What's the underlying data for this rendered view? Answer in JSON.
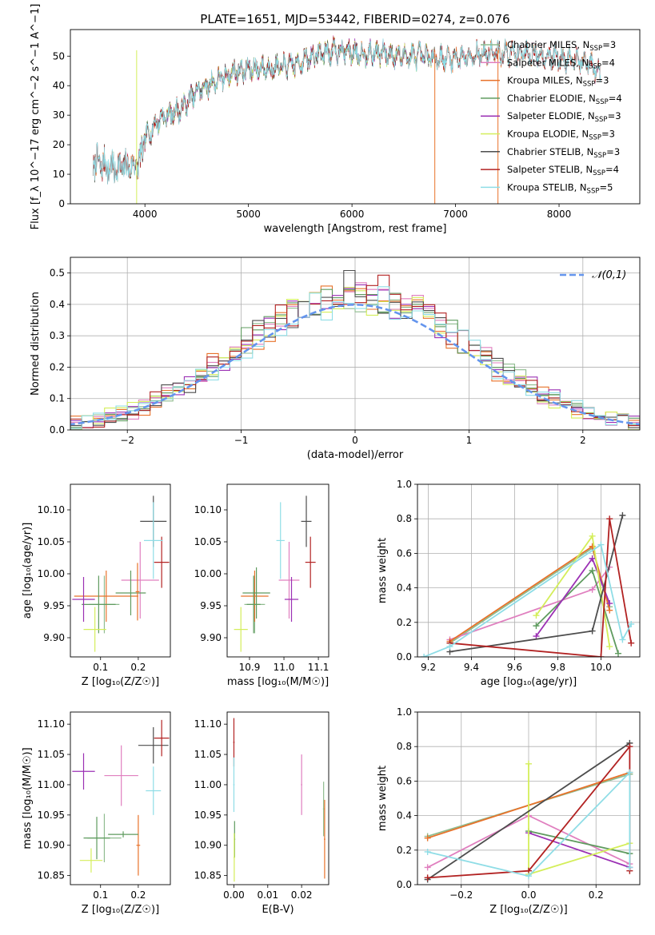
{
  "figure": {
    "title": "PLATE=1651, MJD=53442, FIBERID=0274, z=0.076"
  },
  "colors": {
    "Chabrier MILES": "#8fbc8f",
    "Salpeter MILES": "#e07fbf",
    "Kroupa MILES": "#e8722a",
    "Chabrier ELODIE": "#5f9b5f",
    "Salpeter ELODIE": "#9b30b4",
    "Kroupa ELODIE": "#d4ee5a",
    "Chabrier STELIB": "#4d4d4d",
    "Salpeter STELIB": "#b22222",
    "Kroupa STELIB": "#8fdde6",
    "normal_curve": "#6495ed",
    "grid": "#b0b0b0"
  },
  "chart_data": [
    {
      "id": "spectrum",
      "type": "line",
      "xlabel": "wavelength [Angstrom, rest frame]",
      "ylabel": "Flux [f_λ 10^−17 erg cm^−2 s^−1 A^−1]",
      "xlim": [
        3280,
        8780
      ],
      "ylim": [
        0,
        59
      ],
      "xticks": [
        4000,
        5000,
        6000,
        7000,
        8000
      ],
      "yticks": [
        0,
        10,
        20,
        30,
        40,
        50
      ],
      "grid": false,
      "legend_position": "top-right",
      "legend": [
        {
          "model": "Chabrier MILES",
          "nssp": "3"
        },
        {
          "model": "Salpeter MILES",
          "nssp": "4"
        },
        {
          "model": "Kroupa MILES",
          "nssp": "3"
        },
        {
          "model": "Chabrier ELODIE",
          "nssp": "4"
        },
        {
          "model": "Salpeter ELODIE",
          "nssp": "3"
        },
        {
          "model": "Kroupa ELODIE",
          "nssp": "3"
        },
        {
          "model": "Chabrier STELIB",
          "nssp": "3"
        },
        {
          "model": "Salpeter STELIB",
          "nssp": "4"
        },
        {
          "model": "Kroupa STELIB",
          "nssp": "5"
        }
      ],
      "continuum_knots": [
        [
          3500,
          14
        ],
        [
          3700,
          12
        ],
        [
          3900,
          13
        ],
        [
          3950,
          14
        ],
        [
          4000,
          22
        ],
        [
          4150,
          29
        ],
        [
          4350,
          32
        ],
        [
          4500,
          38
        ],
        [
          4700,
          42
        ],
        [
          4900,
          45
        ],
        [
          5100,
          46
        ],
        [
          5300,
          46
        ],
        [
          5500,
          48
        ],
        [
          5700,
          51
        ],
        [
          5900,
          52
        ],
        [
          6100,
          51
        ],
        [
          6300,
          51
        ],
        [
          6500,
          50
        ],
        [
          6700,
          50
        ],
        [
          6900,
          49
        ],
        [
          7100,
          50
        ],
        [
          7300,
          51
        ],
        [
          7500,
          51
        ],
        [
          7700,
          51
        ],
        [
          7900,
          50
        ],
        [
          8100,
          49
        ],
        [
          8300,
          47
        ],
        [
          8400,
          44
        ]
      ],
      "model_ranges": [
        [
          3500,
          8400
        ],
        [
          3500,
          8400
        ],
        [
          3500,
          8400
        ],
        [
          3900,
          6800
        ],
        [
          3900,
          6800
        ],
        [
          3900,
          6800
        ],
        [
          3500,
          8400
        ],
        [
          3500,
          8400
        ],
        [
          3500,
          8400
        ]
      ]
    },
    {
      "id": "residuals",
      "type": "histogram",
      "xlabel": "(data-model)/error",
      "ylabel": "Normed distribution",
      "xlim": [
        -2.5,
        2.5
      ],
      "ylim": [
        0,
        0.55
      ],
      "xticks": [
        -2,
        -1,
        0,
        1,
        2
      ],
      "yticks": [
        0.0,
        0.1,
        0.2,
        0.3,
        0.4,
        0.5
      ],
      "bin_width": 0.1,
      "grid": true,
      "legend_position": "top-right",
      "legend_label": "𝒩(0,1)",
      "reference_curve": "normal(0,1)"
    },
    {
      "id": "age-vs-z",
      "type": "scatter",
      "xlabel": "Z [log₁₀(Z/Z☉)]",
      "ylabel": "age  [log₁₀(age/yr)]",
      "xlim": [
        0.02,
        0.285
      ],
      "ylim": [
        9.87,
        10.14
      ],
      "xticks": [
        0.1,
        0.2
      ],
      "yticks": [
        9.9,
        9.95,
        10.0,
        10.05,
        10.1
      ],
      "grid": false,
      "points": [
        {
          "model": "Chabrier MILES",
          "x": 0.11,
          "y": 9.952,
          "xerr": 0.04,
          "yerr": 0.045
        },
        {
          "model": "Salpeter MILES",
          "x": 0.205,
          "y": 9.99,
          "xerr": 0.05,
          "yerr": 0.06
        },
        {
          "model": "Kroupa MILES",
          "x": 0.115,
          "y": 9.965,
          "xerr": 0.085,
          "yerr": 0.04
        },
        {
          "model": "Chabrier ELODIE",
          "x": 0.095,
          "y": 9.952,
          "xerr": 0.045,
          "yerr": 0.045
        },
        {
          "model": "Salpeter ELODIE",
          "x": 0.055,
          "y": 9.96,
          "xerr": 0.03,
          "yerr": 0.035
        },
        {
          "model": "Kroupa ELODIE",
          "x": 0.085,
          "y": 9.913,
          "xerr": 0.03,
          "yerr": 0.035
        },
        {
          "model": "Chabrier STELIB",
          "x": 0.24,
          "y": 10.082,
          "xerr": 0.035,
          "yerr": 0.04
        },
        {
          "model": "Salpeter STELIB",
          "x": 0.262,
          "y": 10.018,
          "xerr": 0.02,
          "yerr": 0.04
        },
        {
          "model": "Kroupa STELIB",
          "x": 0.24,
          "y": 10.052,
          "xerr": 0.025,
          "yerr": 0.06
        },
        {
          "model": "Chabrier ELODIE",
          "x": 0.18,
          "y": 9.97,
          "xerr": 0.04,
          "yerr": 0.035
        },
        {
          "model": "Kroupa MILES",
          "x": 0.198,
          "y": 9.972,
          "xerr": 0.005,
          "yerr": 0.045
        }
      ]
    },
    {
      "id": "age-vs-mass",
      "type": "scatter",
      "xlabel": "mass [log₁₀(M/M☉)]",
      "ylabel": "",
      "xlim": [
        10.835,
        11.13
      ],
      "ylim": [
        9.87,
        10.14
      ],
      "xticks": [
        10.9,
        11.0,
        11.1
      ],
      "yticks": [
        9.9,
        9.95,
        10.0,
        10.05,
        10.1
      ],
      "grid": false,
      "points": [
        {
          "model": "Chabrier MILES",
          "x": 10.915,
          "y": 9.952,
          "xerr": 0.03,
          "yerr": 0.045
        },
        {
          "model": "Salpeter MILES",
          "x": 11.015,
          "y": 9.99,
          "xerr": 0.03,
          "yerr": 0.06
        },
        {
          "model": "Kroupa MILES",
          "x": 10.915,
          "y": 9.965,
          "xerr": 0.04,
          "yerr": 0.04
        },
        {
          "model": "Chabrier ELODIE",
          "x": 10.912,
          "y": 9.952,
          "xerr": 0.02,
          "yerr": 0.045
        },
        {
          "model": "Salpeter ELODIE",
          "x": 11.022,
          "y": 9.96,
          "xerr": 0.02,
          "yerr": 0.035
        },
        {
          "model": "Kroupa ELODIE",
          "x": 10.875,
          "y": 9.913,
          "xerr": 0.02,
          "yerr": 0.035
        },
        {
          "model": "Chabrier STELIB",
          "x": 11.065,
          "y": 10.082,
          "xerr": 0.015,
          "yerr": 0.04
        },
        {
          "model": "Salpeter STELIB",
          "x": 11.077,
          "y": 10.018,
          "xerr": 0.015,
          "yerr": 0.04
        },
        {
          "model": "Kroupa STELIB",
          "x": 10.99,
          "y": 10.052,
          "xerr": 0.012,
          "yerr": 0.06
        },
        {
          "model": "Chabrier ELODIE",
          "x": 10.92,
          "y": 9.97,
          "xerr": 0.04,
          "yerr": 0.04
        }
      ]
    },
    {
      "id": "weight-vs-age",
      "type": "line",
      "xlabel": "age  [log₁₀(age/yr)]",
      "ylabel": "mass weight",
      "xlim": [
        9.15,
        10.18
      ],
      "ylim": [
        0.0,
        1.0
      ],
      "xticks": [
        9.2,
        9.4,
        9.6,
        9.8,
        10.0
      ],
      "yticks": [
        0.0,
        0.2,
        0.4,
        0.6,
        0.8,
        1.0
      ],
      "grid": true,
      "series": [
        {
          "model": "Chabrier MILES",
          "x": [
            9.3,
            9.96,
            10.04
          ],
          "y": [
            0.08,
            0.63,
            0.29
          ]
        },
        {
          "model": "Salpeter MILES",
          "x": [
            9.3,
            9.96,
            10.04
          ],
          "y": [
            0.1,
            0.39,
            0.52
          ]
        },
        {
          "model": "Kroupa MILES",
          "x": [
            9.3,
            9.96,
            10.04
          ],
          "y": [
            0.09,
            0.64,
            0.27
          ]
        },
        {
          "model": "Chabrier ELODIE",
          "x": [
            9.7,
            9.96,
            10.08
          ],
          "y": [
            0.18,
            0.5,
            0.02
          ]
        },
        {
          "model": "Salpeter ELODIE",
          "x": [
            9.7,
            9.96,
            10.04
          ],
          "y": [
            0.12,
            0.57,
            0.31
          ]
        },
        {
          "model": "Kroupa ELODIE",
          "x": [
            9.7,
            9.96,
            10.04
          ],
          "y": [
            0.24,
            0.7,
            0.06
          ]
        },
        {
          "model": "Chabrier STELIB",
          "x": [
            9.3,
            9.96,
            10.1
          ],
          "y": [
            0.03,
            0.15,
            0.82
          ]
        },
        {
          "model": "Salpeter STELIB",
          "x": [
            9.3,
            10.0,
            10.04,
            10.14
          ],
          "y": [
            0.08,
            0.0,
            0.8,
            0.08
          ]
        },
        {
          "model": "Kroupa STELIB",
          "x": [
            9.18,
            9.3,
            10.0,
            10.1,
            10.14
          ],
          "y": [
            0.0,
            0.06,
            0.65,
            0.1,
            0.19
          ]
        }
      ]
    },
    {
      "id": "mass-vs-z",
      "type": "scatter",
      "xlabel": "Z [log₁₀(Z/Z☉)]",
      "ylabel": "mass [log₁₀(M/M☉)]",
      "xlim": [
        0.02,
        0.285
      ],
      "ylim": [
        10.835,
        11.12
      ],
      "xticks": [
        0.1,
        0.2
      ],
      "yticks": [
        10.85,
        10.9,
        10.95,
        11.0,
        11.05,
        11.1
      ],
      "grid": false,
      "points": [
        {
          "model": "Chabrier MILES",
          "x": 0.11,
          "y": 10.912,
          "xerr": 0.045,
          "yerr": 0.04
        },
        {
          "model": "Salpeter MILES",
          "x": 0.155,
          "y": 11.015,
          "xerr": 0.045,
          "yerr": 0.05
        },
        {
          "model": "Kroupa MILES",
          "x": 0.2,
          "y": 10.9,
          "xerr": 0.005,
          "yerr": 0.05
        },
        {
          "model": "Chabrier ELODIE",
          "x": 0.09,
          "y": 10.912,
          "xerr": 0.035,
          "yerr": 0.035
        },
        {
          "model": "Salpeter ELODIE",
          "x": 0.055,
          "y": 11.022,
          "xerr": 0.03,
          "yerr": 0.03
        },
        {
          "model": "Kroupa ELODIE",
          "x": 0.075,
          "y": 10.875,
          "xerr": 0.03,
          "yerr": 0.02
        },
        {
          "model": "Chabrier STELIB",
          "x": 0.24,
          "y": 11.065,
          "xerr": 0.04,
          "yerr": 0.03
        },
        {
          "model": "Salpeter STELIB",
          "x": 0.262,
          "y": 11.077,
          "xerr": 0.02,
          "yerr": 0.03
        },
        {
          "model": "Kroupa STELIB",
          "x": 0.24,
          "y": 10.99,
          "xerr": 0.02,
          "yerr": 0.04
        },
        {
          "model": "Chabrier ELODIE",
          "x": 0.16,
          "y": 10.918,
          "xerr": 0.04,
          "yerr": 0.005
        }
      ]
    },
    {
      "id": "mass-vs-ebv",
      "type": "scatter",
      "xlabel": "E(B-V)",
      "ylabel": "",
      "xlim": [
        -0.002,
        0.028
      ],
      "ylim": [
        10.835,
        11.12
      ],
      "xticks": [
        0.0,
        0.01,
        0.02
      ],
      "yticks": [
        10.85,
        10.9,
        10.95,
        11.0,
        11.05,
        11.1
      ],
      "grid": false,
      "points": [
        {
          "model": "Salpeter STELIB",
          "x": 0.0,
          "y": 11.07,
          "xerr": 0.0002,
          "yerr": 0.04
        },
        {
          "model": "Kroupa STELIB",
          "x": 0.0,
          "y": 11.0,
          "xerr": 0.0002,
          "yerr": 0.045
        },
        {
          "model": "Chabrier ELODIE",
          "x": 0.0002,
          "y": 10.91,
          "xerr": 0.0002,
          "yerr": 0.03
        },
        {
          "model": "Kroupa ELODIE",
          "x": 0.0001,
          "y": 10.88,
          "xerr": 0.0002,
          "yerr": 0.04
        },
        {
          "model": "Salpeter MILES",
          "x": 0.02,
          "y": 11.0,
          "xerr": 0.0002,
          "yerr": 0.05
        },
        {
          "model": "Chabrier MILES",
          "x": 0.0265,
          "y": 10.96,
          "xerr": 0.0002,
          "yerr": 0.045
        },
        {
          "model": "Kroupa MILES",
          "x": 0.0268,
          "y": 10.91,
          "xerr": 0.0002,
          "yerr": 0.065
        }
      ]
    },
    {
      "id": "weight-vs-z",
      "type": "line",
      "xlabel": "Z [log₁₀(Z/Z☉)]",
      "ylabel": "mass weight",
      "xlim": [
        -0.33,
        0.33
      ],
      "ylim": [
        0.0,
        1.0
      ],
      "xticks": [
        -0.2,
        0.0,
        0.2
      ],
      "yticks": [
        0.0,
        0.2,
        0.4,
        0.6,
        0.8,
        1.0
      ],
      "grid": true,
      "series": [
        {
          "model": "Chabrier MILES",
          "x": [
            -0.3,
            0.3
          ],
          "y": [
            0.28,
            0.64
          ]
        },
        {
          "model": "Salpeter MILES",
          "x": [
            -0.3,
            0.0,
            0.3
          ],
          "y": [
            0.1,
            0.4,
            0.12
          ]
        },
        {
          "model": "Kroupa MILES",
          "x": [
            -0.3,
            0.3
          ],
          "y": [
            0.27,
            0.65
          ]
        },
        {
          "model": "Chabrier ELODIE",
          "x": [
            0.0,
            0.3
          ],
          "y": [
            0.31,
            0.18
          ]
        },
        {
          "model": "Salpeter ELODIE",
          "x": [
            0.0,
            0.3
          ],
          "y": [
            0.3,
            0.1
          ]
        },
        {
          "model": "Kroupa ELODIE",
          "x": [
            0.0,
            0.0,
            0.3
          ],
          "y": [
            0.7,
            0.06,
            0.24
          ]
        },
        {
          "model": "Chabrier STELIB",
          "x": [
            -0.3,
            0.3
          ],
          "y": [
            0.03,
            0.82
          ]
        },
        {
          "model": "Salpeter STELIB",
          "x": [
            -0.3,
            0.0,
            0.3,
            0.3
          ],
          "y": [
            0.04,
            0.08,
            0.8,
            0.08
          ]
        },
        {
          "model": "Kroupa STELIB",
          "x": [
            -0.3,
            0.0,
            0.3,
            0.3
          ],
          "y": [
            0.19,
            0.05,
            0.65,
            0.1
          ]
        }
      ]
    }
  ]
}
